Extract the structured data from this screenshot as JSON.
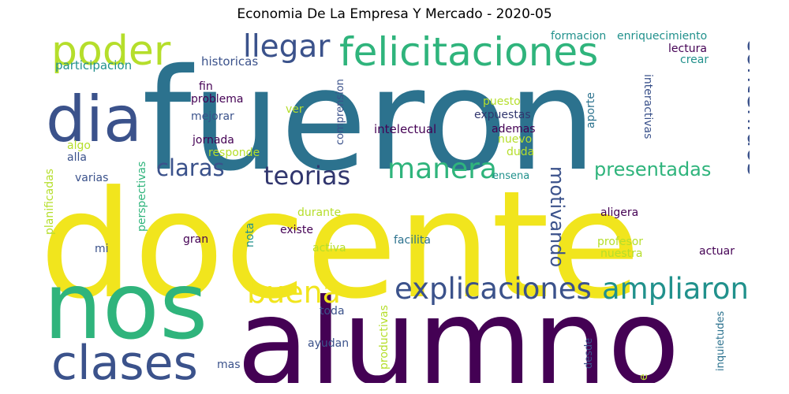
{
  "title": "Economia De La Empresa Y Mercado - 2020-05",
  "words": [
    {
      "text": "fueron",
      "color": "#2c728e"
    },
    {
      "text": "docente",
      "color": "#f1e51d"
    },
    {
      "text": "alumno",
      "color": "#440154"
    },
    {
      "text": "nos",
      "color": "#2fb47c"
    },
    {
      "text": "dia",
      "color": "#3b528b"
    },
    {
      "text": "poder",
      "color": "#b5de2b"
    },
    {
      "text": "felicitaciones",
      "color": "#2fb47c"
    },
    {
      "text": "llegar",
      "color": "#3b528b"
    },
    {
      "text": "contenidos",
      "color": "#3b528b"
    },
    {
      "text": "clases",
      "color": "#3b528b"
    },
    {
      "text": "explicaciones",
      "color": "#3b528b"
    },
    {
      "text": "ampliaron",
      "color": "#21918c"
    },
    {
      "text": "manera",
      "color": "#2fb47c"
    },
    {
      "text": "teorias",
      "color": "#31366e"
    },
    {
      "text": "claras",
      "color": "#3b528b"
    },
    {
      "text": "buena",
      "color": "#f1e51d"
    },
    {
      "text": "presentadas",
      "color": "#2fb47c"
    },
    {
      "text": "motivando",
      "color": "#3b528b"
    },
    {
      "text": "participacion",
      "color": "#21918c"
    },
    {
      "text": "historicas",
      "color": "#3b528b"
    },
    {
      "text": "formacion",
      "color": "#21918c"
    },
    {
      "text": "enriquecimiento",
      "color": "#21918c"
    },
    {
      "text": "lectura",
      "color": "#440154"
    },
    {
      "text": "crear",
      "color": "#21918c"
    },
    {
      "text": "fin",
      "color": "#440154"
    },
    {
      "text": "problema",
      "color": "#440154"
    },
    {
      "text": "mejorar",
      "color": "#3b528b"
    },
    {
      "text": "ver",
      "color": "#b5de2b"
    },
    {
      "text": "comprension",
      "color": "#3b528b"
    },
    {
      "text": "puesto",
      "color": "#b5de2b"
    },
    {
      "text": "expuestas",
      "color": "#31366e"
    },
    {
      "text": "ademas",
      "color": "#440154"
    },
    {
      "text": "nuevo",
      "color": "#b5de2b"
    },
    {
      "text": "duda",
      "color": "#b5de2b"
    },
    {
      "text": "intelectual",
      "color": "#440154"
    },
    {
      "text": "interactivas",
      "color": "#3b528b"
    },
    {
      "text": "aporte",
      "color": "#2c728e"
    },
    {
      "text": "jornada",
      "color": "#440154"
    },
    {
      "text": "responde",
      "color": "#b5de2b"
    },
    {
      "text": "algo",
      "color": "#b5de2b"
    },
    {
      "text": "alla",
      "color": "#3b528b"
    },
    {
      "text": "planificadas",
      "color": "#b5de2b"
    },
    {
      "text": "perspectivas",
      "color": "#2fb47c"
    },
    {
      "text": "varias",
      "color": "#3b528b"
    },
    {
      "text": "ensena",
      "color": "#21918c"
    },
    {
      "text": "durante",
      "color": "#b5de2b"
    },
    {
      "text": "existe",
      "color": "#440154"
    },
    {
      "text": "aligera",
      "color": "#440154"
    },
    {
      "text": "gran",
      "color": "#440154"
    },
    {
      "text": "nota",
      "color": "#21918c"
    },
    {
      "text": "mi",
      "color": "#3b528b"
    },
    {
      "text": "facilita",
      "color": "#2c728e"
    },
    {
      "text": "activa",
      "color": "#b5de2b"
    },
    {
      "text": "profesor",
      "color": "#b5de2b"
    },
    {
      "text": "nuestra",
      "color": "#b5de2b"
    },
    {
      "text": "actuar",
      "color": "#440154"
    },
    {
      "text": "toda",
      "color": "#3b528b"
    },
    {
      "text": "productivas",
      "color": "#b5de2b"
    },
    {
      "text": "ayudan",
      "color": "#3b528b"
    },
    {
      "text": "mas",
      "color": "#3b528b"
    },
    {
      "text": "desde",
      "color": "#3b528b"
    },
    {
      "text": "inquietudes",
      "color": "#2c728e"
    },
    {
      "text": "e",
      "color": "#b5de2b"
    }
  ]
}
